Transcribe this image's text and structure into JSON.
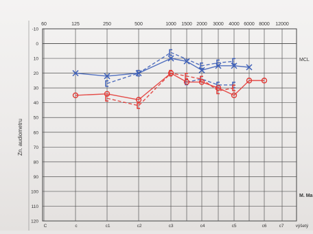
{
  "chart_data": {
    "type": "line",
    "x_ticks": [
      "60",
      "125",
      "250",
      "500",
      "1000",
      "1500",
      "2000",
      "3000",
      "4000",
      "6000",
      "8000",
      "12000"
    ],
    "y_ticks": [
      -10,
      0,
      10,
      20,
      30,
      40,
      50,
      60,
      70,
      80,
      90,
      100,
      110,
      120
    ],
    "ylim": [
      -10,
      120
    ],
    "ylabel": "Zn. audiometru",
    "right_labels": [
      {
        "text": "MCL",
        "y": 0
      },
      {
        "text": "M. Ma",
        "y": 95
      }
    ],
    "bottom_labels": [
      "C",
      "c",
      "c1",
      "c2",
      "c3",
      "c4",
      "c5",
      "c6",
      "c7",
      "výšetý"
    ],
    "grid": true,
    "series": [
      {
        "name": "",
        "color": "#3d5fb8",
        "marker": "x",
        "x": [
          "125",
          "250",
          "500",
          "1000",
          "1500",
          "2000",
          "3000",
          "4000",
          "6000"
        ],
        "values": [
          20,
          22,
          20,
          10,
          12,
          18,
          15,
          15,
          16
        ]
      },
      {
        "name": "",
        "color": "#3d5fb8",
        "marker": "bracket",
        "x": [
          "250",
          "500",
          "1000",
          "2000",
          "3000",
          "4000"
        ],
        "values": [
          27,
          20,
          6,
          15,
          13,
          12
        ]
      },
      {
        "name": "",
        "color": "#3d5fb8",
        "marker": "bracket",
        "x": [
          "1500",
          "2000",
          "3000",
          "4000"
        ],
        "values": [
          26,
          24,
          28,
          28
        ]
      },
      {
        "name": "",
        "color": "#e23a36",
        "marker": "circle",
        "x": [
          "125",
          "250",
          "500",
          "1000",
          "1500",
          "2000",
          "3000",
          "4000",
          "6000",
          "8000"
        ],
        "values": [
          35,
          34,
          38,
          20,
          26,
          26,
          30,
          35,
          25,
          25
        ]
      },
      {
        "name": "",
        "color": "#e23a36",
        "marker": "bracket",
        "x": [
          "250",
          "500",
          "1000",
          "1500",
          "2000",
          "3000",
          "4000"
        ],
        "values": [
          37,
          42,
          20,
          22,
          24,
          32,
          30
        ]
      }
    ]
  }
}
